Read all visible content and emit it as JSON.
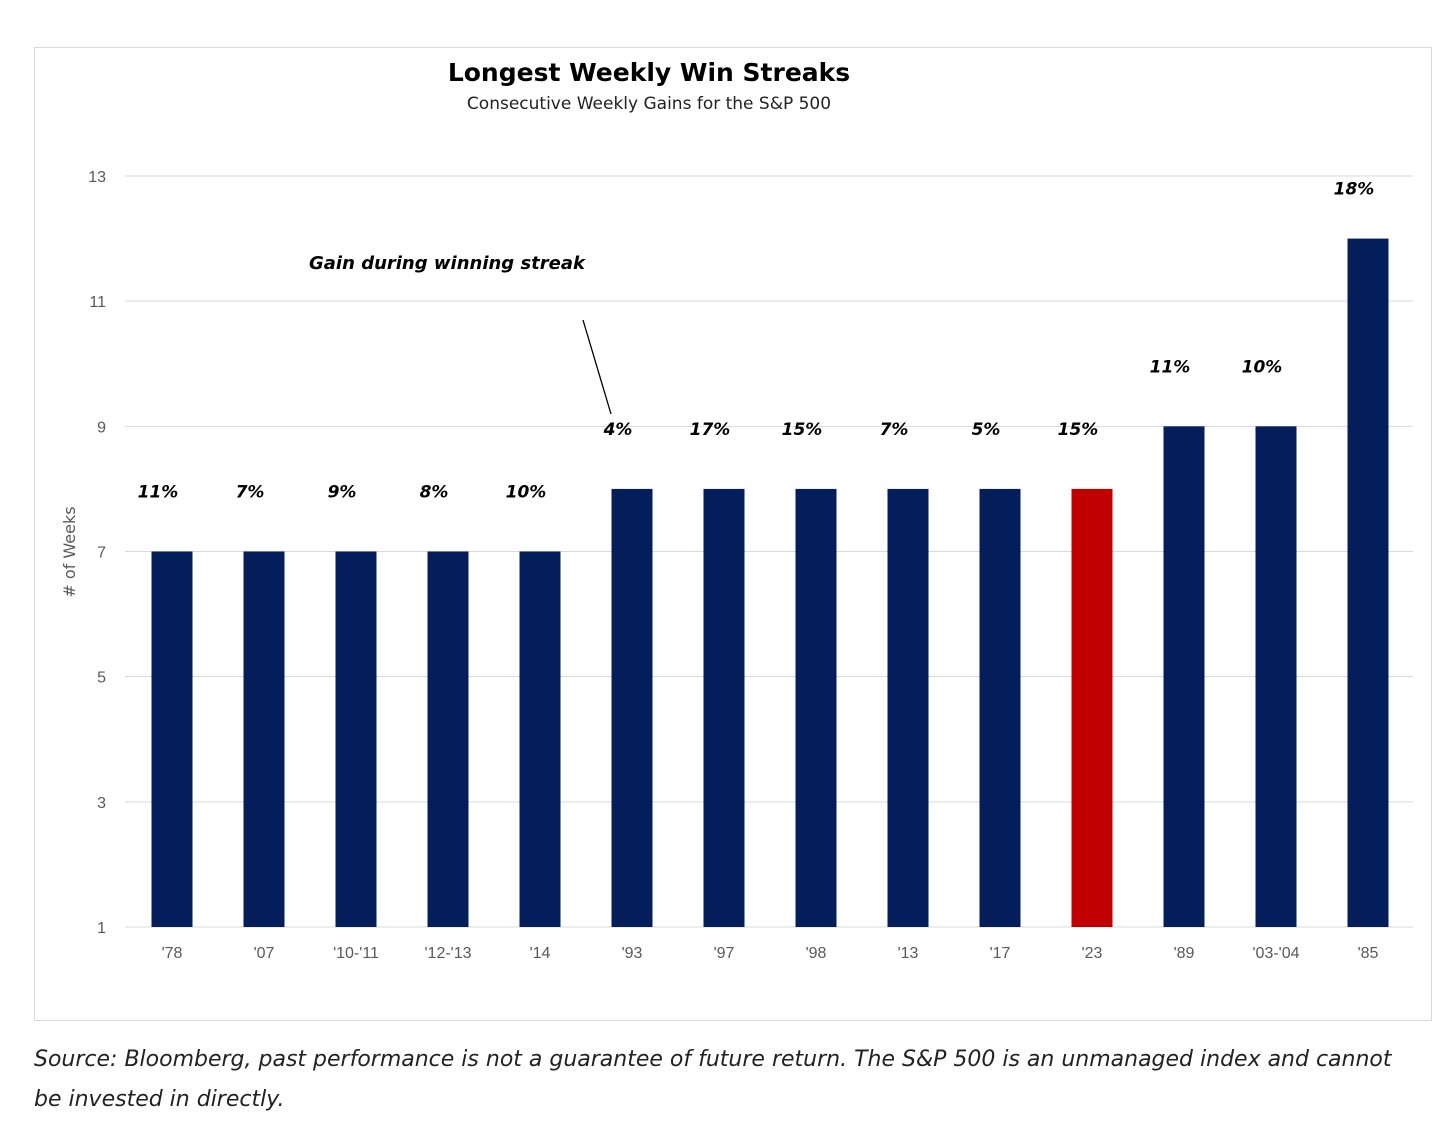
{
  "chart_data": {
    "type": "bar",
    "title": "Longest Weekly Win Streaks",
    "subtitle": "Consecutive Weekly Gains for the S&P 500",
    "ylabel": "# of Weeks",
    "xlabel": "",
    "ylim": [
      1,
      13
    ],
    "yticks": [
      1,
      3,
      5,
      7,
      9,
      11,
      13
    ],
    "grid": true,
    "categories": [
      "'78",
      "'07",
      "'10-'11",
      "'12-'13",
      "'14",
      "'93",
      "'97",
      "'98",
      "'13",
      "'17",
      "'23",
      "'89",
      "'03-'04",
      "'85"
    ],
    "values": [
      7,
      7,
      7,
      7,
      7,
      8,
      8,
      8,
      8,
      8,
      8,
      9,
      9,
      12
    ],
    "data_labels": [
      "11%",
      "7%",
      "9%",
      "8%",
      "10%",
      "4%",
      "17%",
      "15%",
      "7%",
      "5%",
      "15%",
      "11%",
      "10%",
      "18%"
    ],
    "highlight_index": 10,
    "colors": {
      "bar": "#041e5c",
      "highlight": "#c00000",
      "grid": "#d9d9d9"
    },
    "annotation": "Gain during winning streak"
  },
  "source": "Source: Bloomberg, past performance is not a guarantee of future return. The S&P 500 is an unmanaged index and cannot be invested in directly."
}
